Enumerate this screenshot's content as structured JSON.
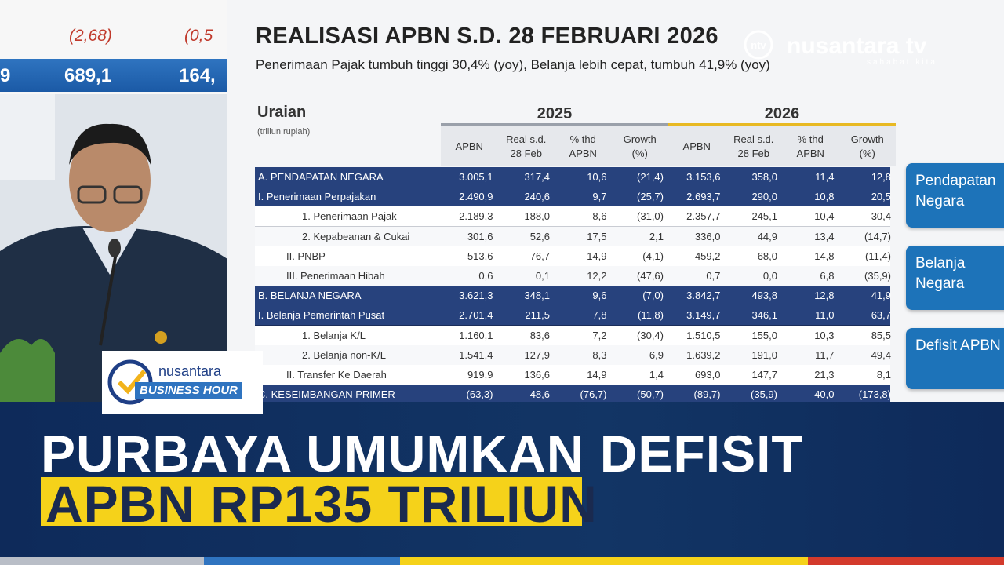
{
  "top_strip": {
    "row1": [
      "(2,68)",
      "(0,5"
    ],
    "row2": [
      "9",
      "689,1",
      "164,"
    ]
  },
  "slide": {
    "title": "REALISASI APBN S.D. 28 FEBRUARI 2026",
    "subtitle": "Penerimaan Pajak tumbuh tinggi 30,4% (yoy), Belanja lebih cepat, tumbuh 41,9% (yoy)",
    "table": {
      "header": "Uraian",
      "unit": "(triliun rupiah)",
      "years": [
        "2025",
        "2026"
      ],
      "columns": [
        "APBN",
        "Real s.d. 28 Feb",
        "% thd APBN",
        "Growth (%)",
        "APBN",
        "Real s.d. 28 Feb",
        "% thd APBN",
        "Growth (%)"
      ],
      "rows": [
        {
          "label": "A. PENDAPATAN NEGARA",
          "values": [
            "3.005,1",
            "317,4",
            "10,6",
            "(21,4)",
            "3.153,6",
            "358,0",
            "11,4",
            "12,8"
          ]
        },
        {
          "label": "I. Penerimaan Perpajakan",
          "values": [
            "2.490,9",
            "240,6",
            "9,7",
            "(25,7)",
            "2.693,7",
            "290,0",
            "10,8",
            "20,5"
          ]
        },
        {
          "label": "1. Penerimaan Pajak",
          "values": [
            "2.189,3",
            "188,0",
            "8,6",
            "(31,0)",
            "2.357,7",
            "245,1",
            "10,4",
            "30,4"
          ]
        },
        {
          "label": "2. Kepabeanan & Cukai",
          "values": [
            "301,6",
            "52,6",
            "17,5",
            "2,1",
            "336,0",
            "44,9",
            "13,4",
            "(14,7)"
          ]
        },
        {
          "label": "II. PNBP",
          "values": [
            "513,6",
            "76,7",
            "14,9",
            "(4,1)",
            "459,2",
            "68,0",
            "14,8",
            "(11,4)"
          ]
        },
        {
          "label": "III. Penerimaan Hibah",
          "values": [
            "0,6",
            "0,1",
            "12,2",
            "(47,6)",
            "0,7",
            "0,0",
            "6,8",
            "(35,9)"
          ]
        },
        {
          "label": "B. BELANJA NEGARA",
          "values": [
            "3.621,3",
            "348,1",
            "9,6",
            "(7,0)",
            "3.842,7",
            "493,8",
            "12,8",
            "41,9"
          ]
        },
        {
          "label": "I. Belanja Pemerintah Pusat",
          "values": [
            "2.701,4",
            "211,5",
            "7,8",
            "(11,8)",
            "3.149,7",
            "346,1",
            "11,0",
            "63,7"
          ]
        },
        {
          "label": "1. Belanja K/L",
          "values": [
            "1.160,1",
            "83,6",
            "7,2",
            "(30,4)",
            "1.510,5",
            "155,0",
            "10,3",
            "85,5"
          ]
        },
        {
          "label": "2. Belanja non-K/L",
          "values": [
            "1.541,4",
            "127,9",
            "8,3",
            "6,9",
            "1.639,2",
            "191,0",
            "11,7",
            "49,4"
          ]
        },
        {
          "label": "II. Transfer Ke Daerah",
          "values": [
            "919,9",
            "136,6",
            "14,9",
            "1,4",
            "693,0",
            "147,7",
            "21,3",
            "8,1"
          ]
        },
        {
          "label": "C. KESEIMBANGAN PRIMER",
          "values": [
            "(63,3)",
            "48,6",
            "(76,7)",
            "(50,7)",
            "(89,7)",
            "(35,9)",
            "40,0",
            "(173,8)"
          ]
        }
      ]
    },
    "buttons": [
      "Pendapatan Negara",
      "Belanja Negara",
      "Defisit APBN"
    ]
  },
  "channel": {
    "name": "nusantara tv",
    "badge": "ntv",
    "tagline": "sahabat kita"
  },
  "program": {
    "top": "nusantara",
    "bottom": "BUSINESS HOUR"
  },
  "headline": {
    "line1": "PURBAYA UMUMKAN DEFISIT",
    "line2": "APBN RP135 TRILIUN"
  }
}
